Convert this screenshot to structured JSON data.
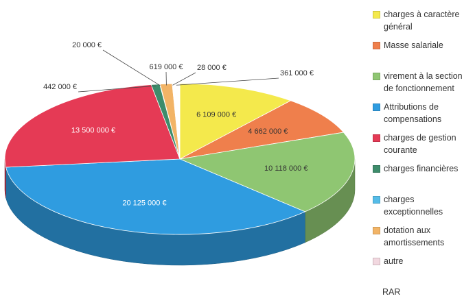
{
  "chart_data": {
    "type": "pie",
    "categories": [
      "charges à caractère général",
      "Masse salariale",
      "virement à la section de fonctionnement",
      "Attributions de compensations",
      "charges de gestion courante",
      "charges financières",
      "charges exceptionnelles",
      "dotation aux amortissements",
      "autre",
      "RAR"
    ],
    "values": [
      6109000,
      4662000,
      10118000,
      20125000,
      13500000,
      442000,
      20000,
      619000,
      28000,
      361000
    ],
    "value_labels": [
      "6 109 000 €",
      "4 662 000 €",
      "10 118 000 €",
      "20 125 000 €",
      "13 500 000 €",
      "442 000 €",
      "20 000 €",
      "619 000 €",
      "28 000 €",
      "361 000 €"
    ],
    "colors": [
      "#f4e94c",
      "#ef7f4c",
      "#8fc672",
      "#2f9ce0",
      "#e53a55",
      "#3d8c6b",
      "#55bce8",
      "#f2b466",
      "#f2d8e0",
      "#ffffff"
    ],
    "legend": "right"
  }
}
